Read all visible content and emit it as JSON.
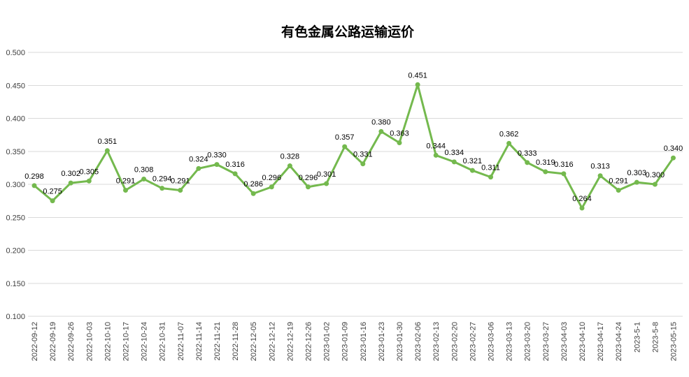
{
  "chart_data": {
    "type": "line",
    "title": "有色金属公路运输运价",
    "categories": [
      "2022-09-12",
      "2022-09-19",
      "2022-09-26",
      "2022-10-03",
      "2022-10-10",
      "2022-10-17",
      "2022-10-24",
      "2022-10-31",
      "2022-11-07",
      "2022-11-14",
      "2022-11-21",
      "2022-11-28",
      "2022-12-05",
      "2022-12-12",
      "2022-12-19",
      "2022-12-26",
      "2023-01-02",
      "2023-01-09",
      "2023-01-16",
      "2023-01-23",
      "2023-01-30",
      "2023-02-06",
      "2023-02-13",
      "2023-02-20",
      "2023-02-27",
      "2023-03-06",
      "2023-03-13",
      "2023-03-20",
      "2023-03-27",
      "2023-04-03",
      "2023-04-10",
      "2023-04-17",
      "2023-04-24",
      "2023-5-1",
      "2023-5-8",
      "2023-05-15"
    ],
    "values": [
      0.298,
      0.275,
      0.302,
      0.305,
      0.351,
      0.291,
      0.308,
      0.294,
      0.291,
      0.324,
      0.33,
      0.316,
      0.286,
      0.296,
      0.328,
      0.296,
      0.301,
      0.357,
      0.331,
      0.38,
      0.363,
      0.451,
      0.344,
      0.334,
      0.321,
      0.311,
      0.362,
      0.333,
      0.319,
      0.316,
      0.264,
      0.313,
      0.291,
      0.303,
      0.3,
      0.34
    ],
    "xlabel": "",
    "ylabel": "",
    "ylim": [
      0.1,
      0.5
    ],
    "ytick_step": 0.05,
    "ytick_decimals": 3,
    "data_labels": true,
    "data_label_decimals": 3,
    "x_label_rotation": 90,
    "grid": "horizontal-only",
    "legend": "none",
    "colors": {
      "line": "#74b94e",
      "marker": "#74b94e",
      "gridline": "#d9d9d9",
      "axis_text": "#404040",
      "data_label_text": "#000000",
      "title_text": "#000000",
      "background": "#ffffff"
    }
  }
}
